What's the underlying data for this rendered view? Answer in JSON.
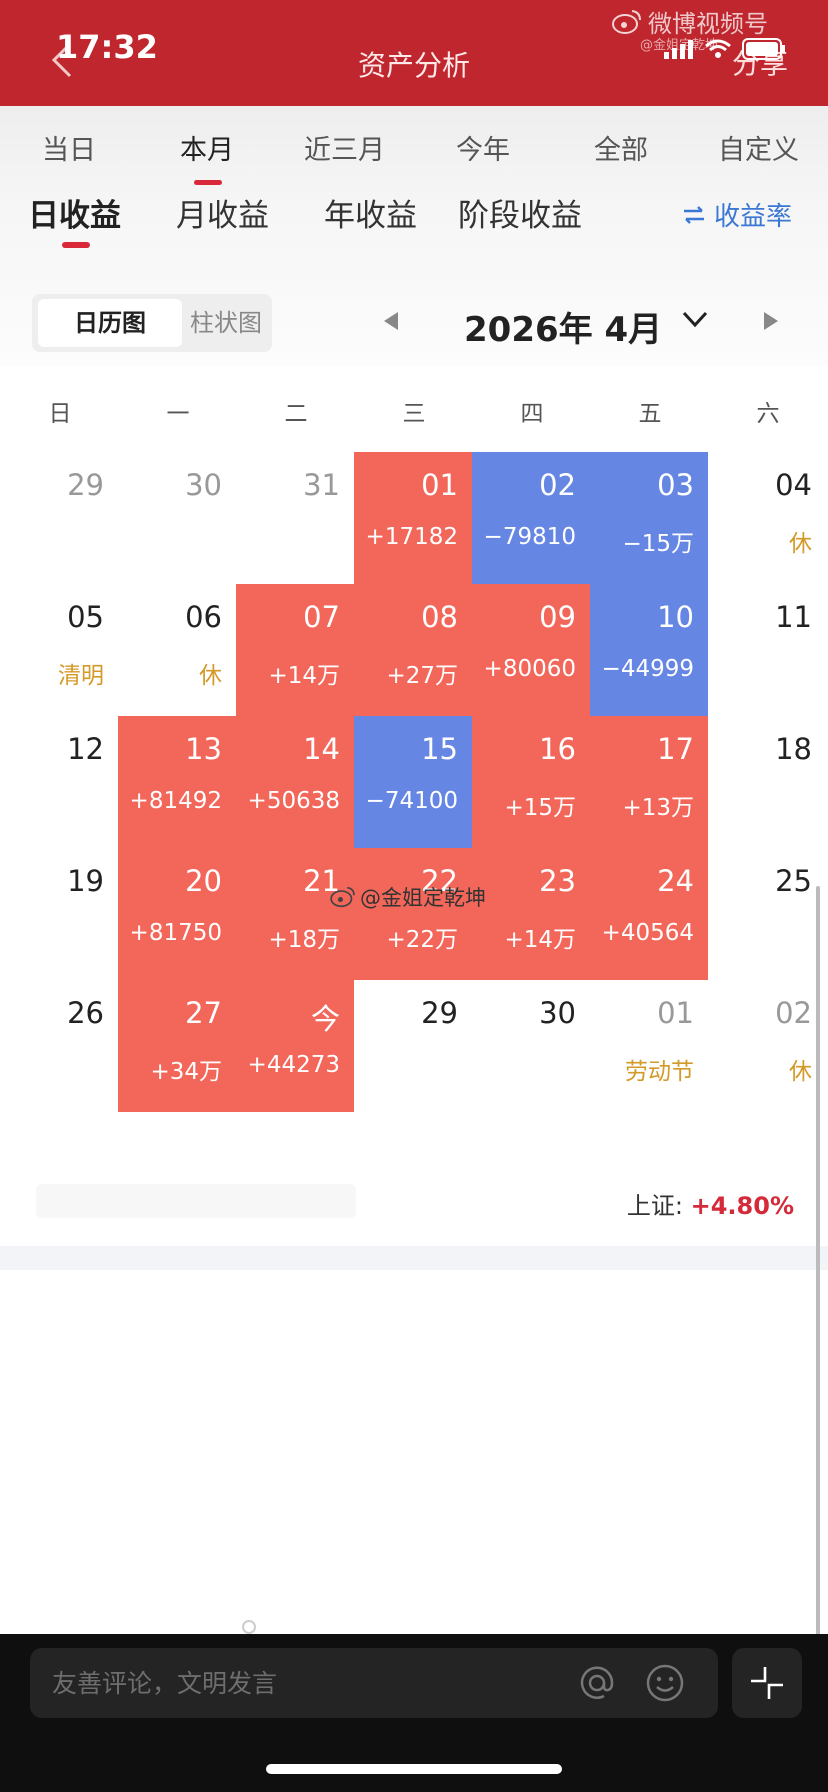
{
  "status_bar": {
    "time": "17:32"
  },
  "header": {
    "title": "资产分析",
    "share_label": "分享"
  },
  "watermark": {
    "top": "微博视频号",
    "top_sub": "@金姐定乾坤",
    "middle": "@金姐定乾坤"
  },
  "period_tabs": [
    {
      "label": "当日"
    },
    {
      "label": "本月"
    },
    {
      "label": "近三月"
    },
    {
      "label": "今年"
    },
    {
      "label": "全部"
    },
    {
      "label": "自定义"
    }
  ],
  "metric_tabs": [
    {
      "label": "日收益"
    },
    {
      "label": "月收益"
    },
    {
      "label": "年收益"
    },
    {
      "label": "阶段收益"
    }
  ],
  "rate_toggle": {
    "label": "收益率"
  },
  "view_toggle": {
    "calendar": "日历图",
    "bar": "柱状图"
  },
  "month_nav": {
    "label": "2026年 4月"
  },
  "weekdays": [
    "日",
    "一",
    "二",
    "三",
    "四",
    "五",
    "六"
  ],
  "calendar": {
    "weeks": [
      [
        {
          "day": "29",
          "state": "gray",
          "sub": ""
        },
        {
          "day": "30",
          "state": "gray",
          "sub": ""
        },
        {
          "day": "31",
          "state": "gray",
          "sub": ""
        },
        {
          "day": "01",
          "state": "pos",
          "sub": "+17182"
        },
        {
          "day": "02",
          "state": "neg",
          "sub": "−79810"
        },
        {
          "day": "03",
          "state": "neg",
          "sub": "−15万"
        },
        {
          "day": "04",
          "state": "plain",
          "sub": "休",
          "holiday": true
        }
      ],
      [
        {
          "day": "05",
          "state": "plain",
          "sub": "清明",
          "holiday": true
        },
        {
          "day": "06",
          "state": "plain",
          "sub": "休",
          "holiday": true
        },
        {
          "day": "07",
          "state": "pos",
          "sub": "+14万"
        },
        {
          "day": "08",
          "state": "pos",
          "sub": "+27万"
        },
        {
          "day": "09",
          "state": "pos",
          "sub": "+80060"
        },
        {
          "day": "10",
          "state": "neg",
          "sub": "−44999"
        },
        {
          "day": "11",
          "state": "plain",
          "sub": ""
        }
      ],
      [
        {
          "day": "12",
          "state": "plain",
          "sub": ""
        },
        {
          "day": "13",
          "state": "pos",
          "sub": "+81492"
        },
        {
          "day": "14",
          "state": "pos",
          "sub": "+50638"
        },
        {
          "day": "15",
          "state": "neg",
          "sub": "−74100"
        },
        {
          "day": "16",
          "state": "pos",
          "sub": "+15万"
        },
        {
          "day": "17",
          "state": "pos",
          "sub": "+13万"
        },
        {
          "day": "18",
          "state": "plain",
          "sub": ""
        }
      ],
      [
        {
          "day": "19",
          "state": "plain",
          "sub": ""
        },
        {
          "day": "20",
          "state": "pos",
          "sub": "+81750"
        },
        {
          "day": "21",
          "state": "pos",
          "sub": "+18万"
        },
        {
          "day": "22",
          "state": "pos",
          "sub": "+22万"
        },
        {
          "day": "23",
          "state": "pos",
          "sub": "+14万"
        },
        {
          "day": "24",
          "state": "pos",
          "sub": "+40564"
        },
        {
          "day": "25",
          "state": "plain",
          "sub": ""
        }
      ],
      [
        {
          "day": "26",
          "state": "plain",
          "sub": ""
        },
        {
          "day": "27",
          "state": "pos",
          "sub": "+34万"
        },
        {
          "day": "今",
          "state": "pos",
          "sub": "+44273"
        },
        {
          "day": "29",
          "state": "plain",
          "sub": ""
        },
        {
          "day": "30",
          "state": "plain",
          "sub": ""
        },
        {
          "day": "01",
          "state": "gray",
          "sub": "劳动节",
          "holiday": true
        },
        {
          "day": "02",
          "state": "gray",
          "sub": "休",
          "holiday": true
        }
      ]
    ]
  },
  "index": {
    "label": "上证:",
    "value": "+4.80%"
  },
  "comment": {
    "placeholder": "友善评论，文明发言"
  },
  "colors": {
    "header": "#c0262e",
    "positive": "#f2675a",
    "negative": "#6686e4",
    "accent_red": "#d9283a",
    "link_blue": "#3b77d4",
    "holiday": "#d39a2a"
  }
}
